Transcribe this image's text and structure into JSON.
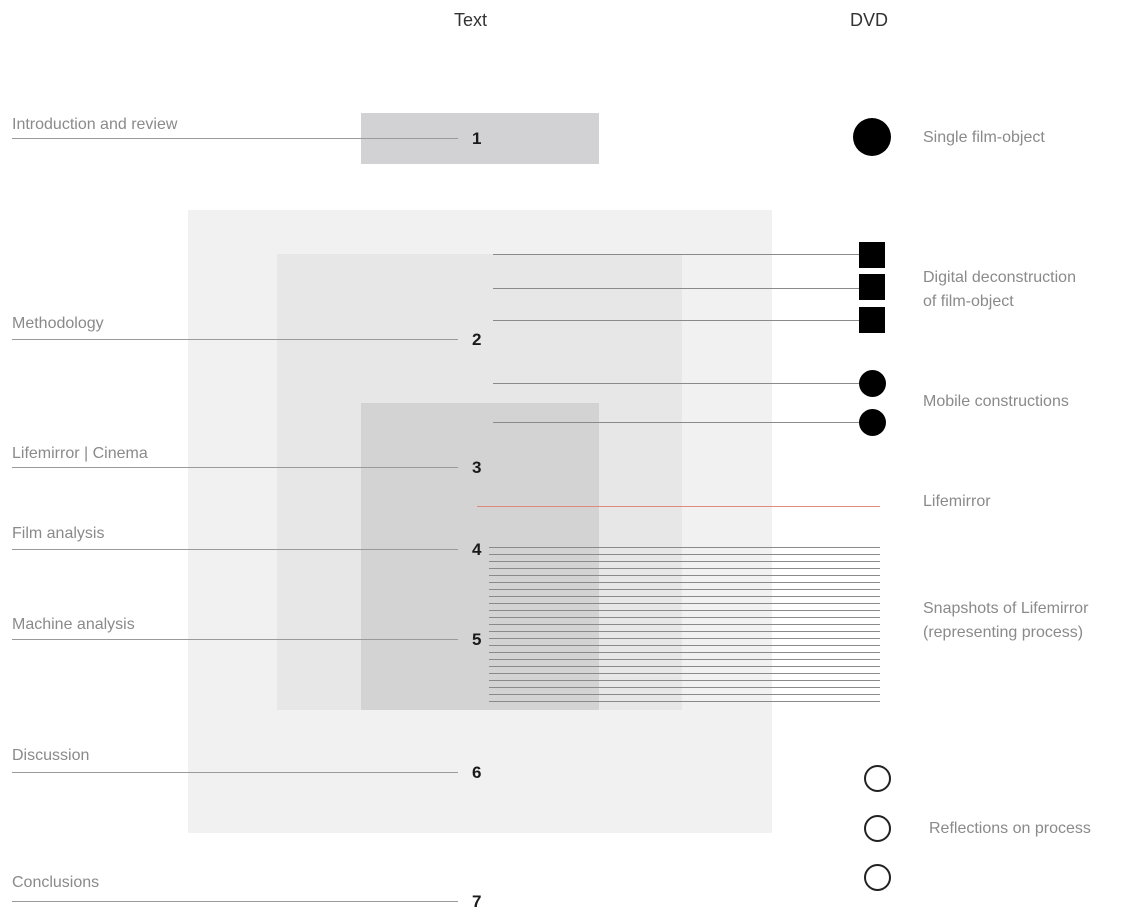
{
  "headers": {
    "text": "Text",
    "dvd": "DVD"
  },
  "chapters": [
    {
      "label": "Introduction and review",
      "number": "1"
    },
    {
      "label": "Methodology",
      "number": "2"
    },
    {
      "label": "Lifemirror | Cinema",
      "number": "3"
    },
    {
      "label": "Film analysis",
      "number": "4"
    },
    {
      "label": "Machine analysis",
      "number": "5"
    },
    {
      "label": "Discussion",
      "number": "6"
    },
    {
      "label": "Conclusions",
      "number": "7"
    }
  ],
  "dvd_items": {
    "single_film_object": "Single film-object",
    "digital_deconstruction_line1": "Digital deconstruction",
    "digital_deconstruction_line2": "of film-object",
    "mobile_constructions": "Mobile constructions",
    "lifemirror": "Lifemirror",
    "snapshots_line1": "Snapshots of Lifemirror",
    "snapshots_line2": "(representing process)",
    "reflections": "Reflections on process"
  },
  "colors": {
    "box_chapter1": "#d2d2d4",
    "box_outer": "#f1f1f2",
    "box_middle": "#e7e7e8",
    "box_inner": "#d3d3d4",
    "lifemirror_line": "#e08a80"
  }
}
